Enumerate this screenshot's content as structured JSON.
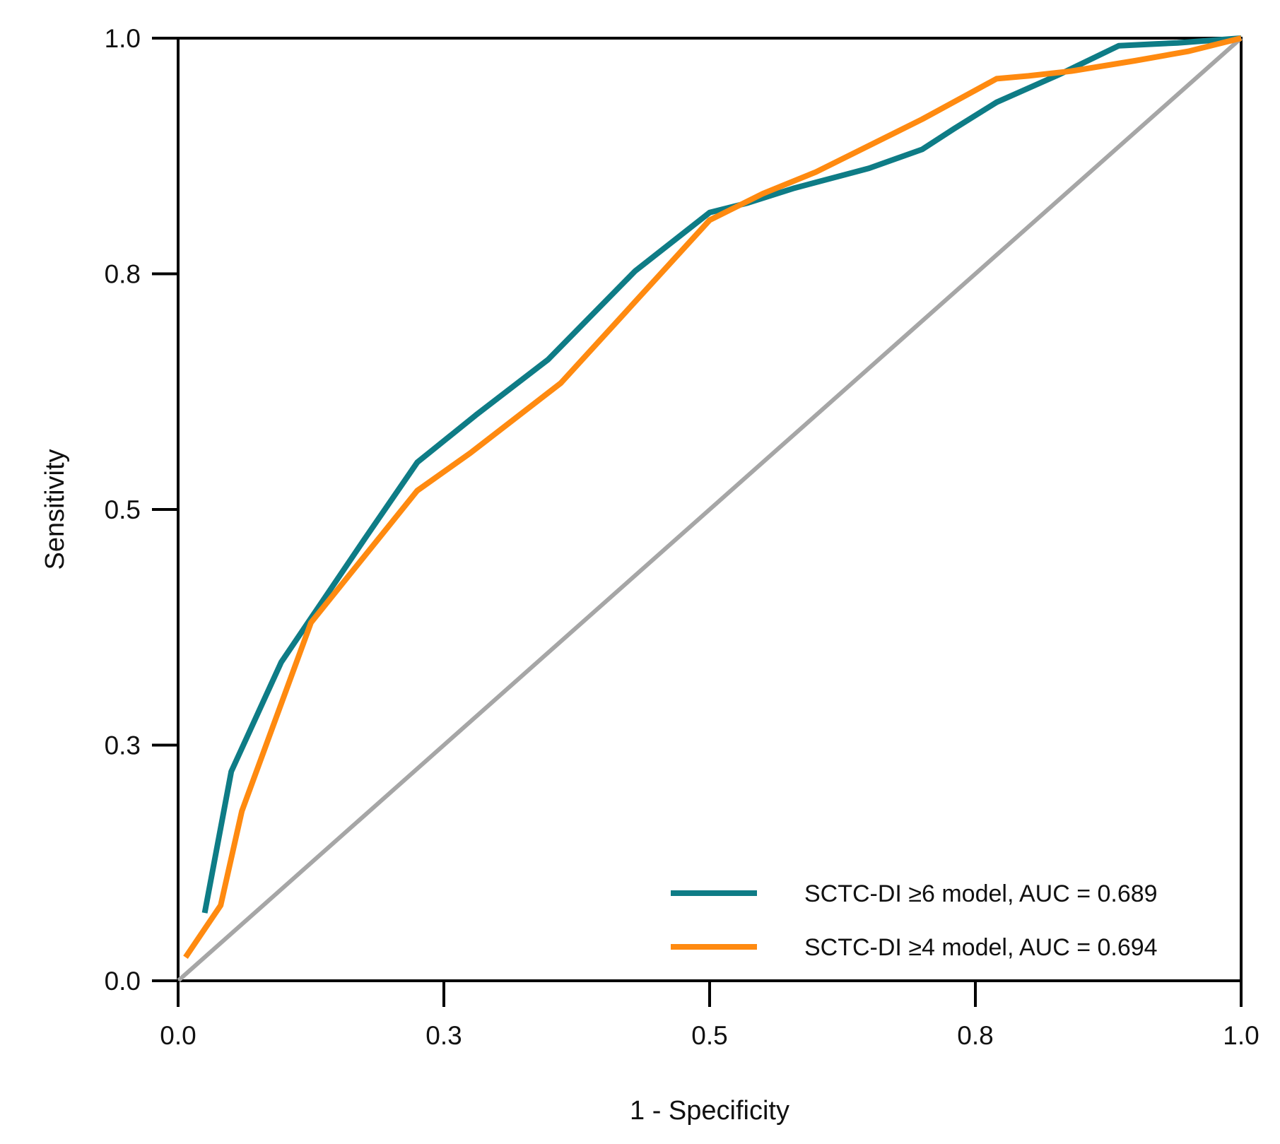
{
  "chart_data": {
    "type": "line",
    "title": "",
    "xlabel": "1 - Specificity",
    "ylabel": "Sensitivity",
    "xlim": [
      0,
      1
    ],
    "ylim": [
      0,
      1
    ],
    "xticks": [
      {
        "value": 0.0,
        "label": "0.0"
      },
      {
        "value": 0.25,
        "label": "0.3"
      },
      {
        "value": 0.5,
        "label": "0.5"
      },
      {
        "value": 0.75,
        "label": "0.8"
      },
      {
        "value": 1.0,
        "label": "1.0"
      }
    ],
    "yticks": [
      {
        "value": 0.0,
        "label": "0.0"
      },
      {
        "value": 0.25,
        "label": "0.3"
      },
      {
        "value": 0.5,
        "label": "0.5"
      },
      {
        "value": 0.75,
        "label": "0.8"
      },
      {
        "value": 1.0,
        "label": "1.0"
      }
    ],
    "grid": false,
    "legend_position": "bottom-right",
    "reference_line": {
      "name": "chance",
      "x": [
        0,
        1
      ],
      "y": [
        0,
        1
      ],
      "color": "#a6a6a6"
    },
    "series": [
      {
        "name": "SCTC-DI ≥6 model, AUC = 0.689",
        "color": "#0e7c86",
        "x": [
          0.025,
          0.05,
          0.097,
          0.175,
          0.225,
          0.28,
          0.348,
          0.43,
          0.5,
          0.535,
          0.58,
          0.62,
          0.65,
          0.7,
          0.73,
          0.77,
          0.83,
          0.885,
          0.94,
          1.0
        ],
        "y": [
          0.072,
          0.222,
          0.338,
          0.468,
          0.55,
          0.6,
          0.659,
          0.753,
          0.815,
          0.825,
          0.841,
          0.853,
          0.862,
          0.882,
          0.904,
          0.932,
          0.962,
          0.992,
          0.995,
          1.0
        ]
      },
      {
        "name": "SCTC-DI ≥4 model, AUC = 0.694",
        "color": "#ff8a10",
        "x": [
          0.007,
          0.04,
          0.06,
          0.125,
          0.225,
          0.275,
          0.36,
          0.5,
          0.55,
          0.6,
          0.7,
          0.77,
          0.8,
          0.84,
          0.9,
          0.95,
          1.0
        ],
        "y": [
          0.025,
          0.08,
          0.18,
          0.38,
          0.52,
          0.56,
          0.634,
          0.807,
          0.835,
          0.858,
          0.914,
          0.957,
          0.96,
          0.965,
          0.976,
          0.986,
          1.0
        ]
      }
    ]
  }
}
